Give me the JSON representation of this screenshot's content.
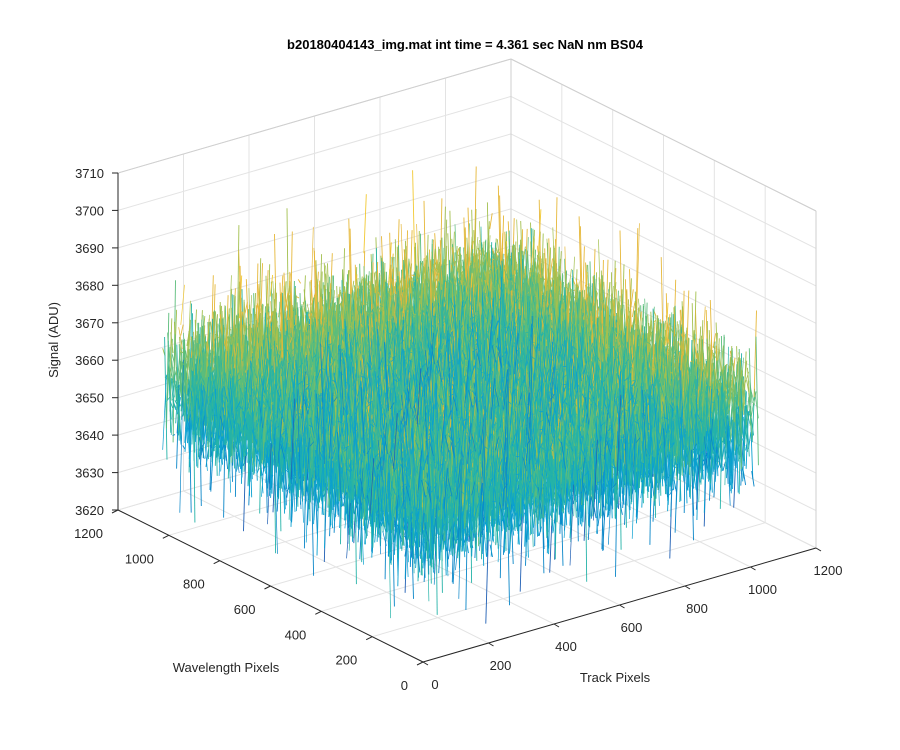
{
  "chart_data": {
    "type": "surface-3d",
    "title": "b20180404143_img.mat int time = 4.361 sec  NaN nm BS04",
    "xlabel": "Track Pixels",
    "ylabel": "Wavelength Pixels",
    "zlabel": "Signal (ADU)",
    "xlim": [
      0,
      1200
    ],
    "ylim": [
      0,
      1200
    ],
    "zlim": [
      3620,
      3710
    ],
    "x_ticks": [
      "0",
      "200",
      "400",
      "600",
      "800",
      "1000",
      "1200"
    ],
    "y_ticks": [
      "0",
      "200",
      "400",
      "600",
      "800",
      "1000",
      "1200"
    ],
    "z_ticks": [
      "3620",
      "3630",
      "3640",
      "3650",
      "3660",
      "3670",
      "3680",
      "3690",
      "3700",
      "3710"
    ],
    "x_data_range": [
      0,
      1024
    ],
    "y_data_range": [
      0,
      1024
    ],
    "z_mean": 3660,
    "z_range": [
      3625,
      3705
    ],
    "grid": "on",
    "colormap": [
      "#1f5fb4",
      "#0a86c8",
      "#0aa0d0",
      "#25b3a8",
      "#5cbd7b",
      "#a3c04f",
      "#e6b83a",
      "#f2c934"
    ]
  }
}
